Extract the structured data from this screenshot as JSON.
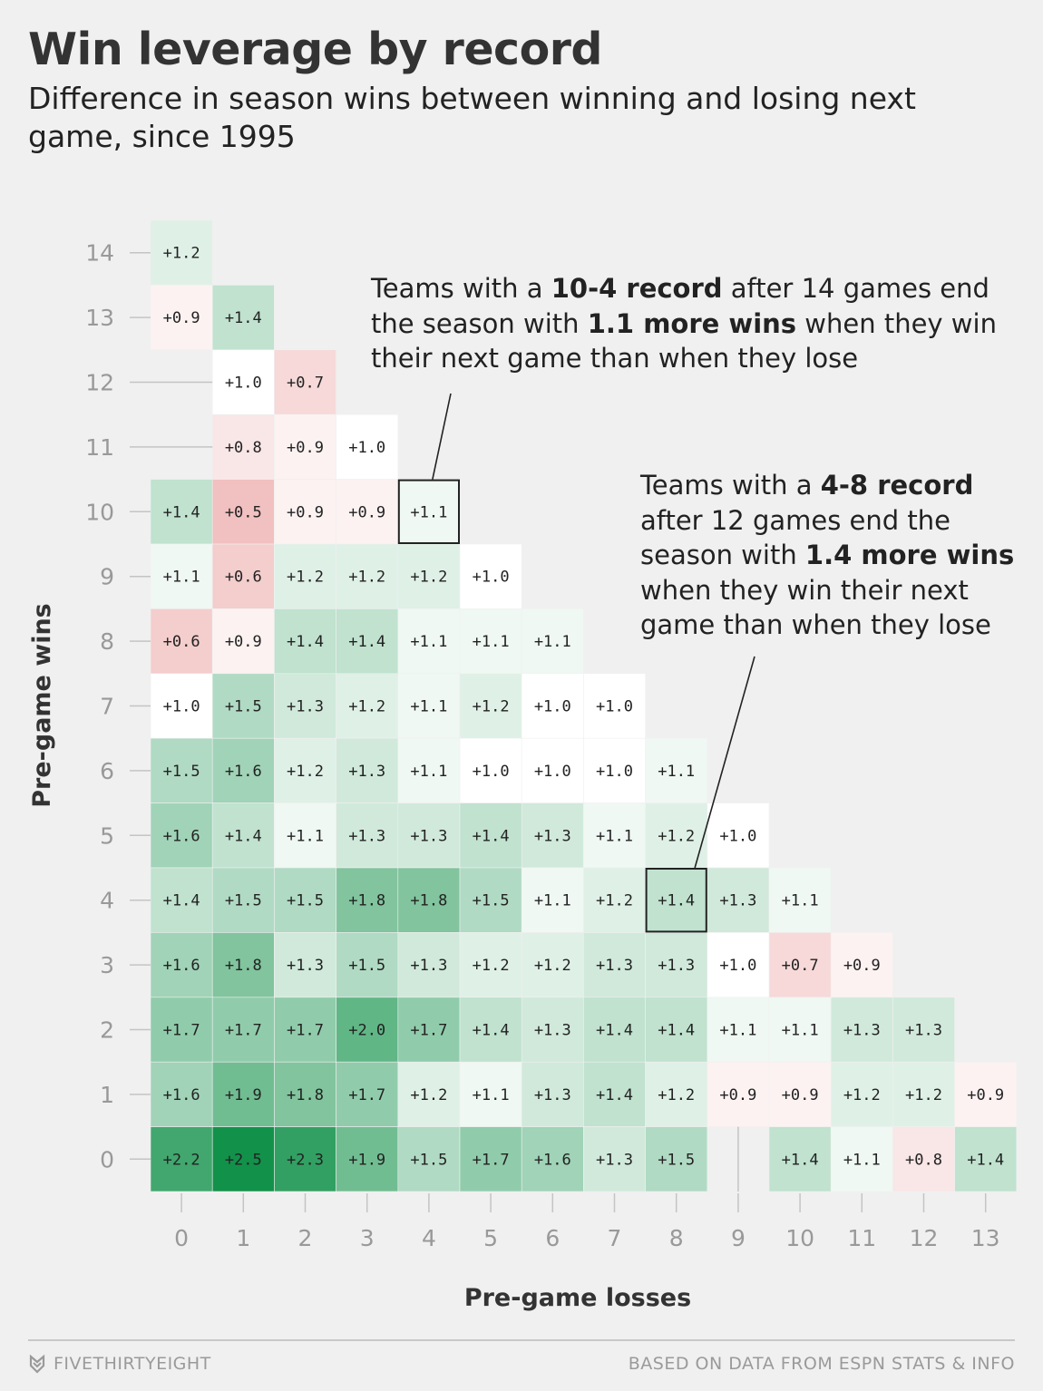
{
  "header": {
    "title": "Win leverage by record",
    "subtitle": "Difference in season wins between winning and losing next game, since 1995"
  },
  "annotations": [
    {
      "parts": [
        {
          "t": "Teams with a ",
          "b": false
        },
        {
          "t": "10-4 record",
          "b": true
        },
        {
          "t": " after 14 games end the season with ",
          "b": false
        },
        {
          "t": "1.1 more wins",
          "b": true
        },
        {
          "t": " when they win their next game than when they lose",
          "b": false
        }
      ],
      "highlight": {
        "wins": 10,
        "losses": 4
      }
    },
    {
      "parts": [
        {
          "t": "Teams with a ",
          "b": false
        },
        {
          "t": "4-8 record",
          "b": true
        },
        {
          "t": " after 12 games end the season with ",
          "b": false
        },
        {
          "t": "1.4 more wins",
          "b": true
        },
        {
          "t": " when they win their next game than when they lose",
          "b": false
        }
      ],
      "highlight": {
        "wins": 4,
        "losses": 8
      }
    }
  ],
  "chart_data": {
    "type": "heatmap",
    "xlabel": "Pre-game losses",
    "ylabel": "Pre-game wins",
    "x_ticks": [
      0,
      1,
      2,
      3,
      4,
      5,
      6,
      7,
      8,
      9,
      10,
      11,
      12,
      13
    ],
    "y_ticks": [
      0,
      1,
      2,
      3,
      4,
      5,
      6,
      7,
      8,
      9,
      10,
      11,
      12,
      13,
      14
    ],
    "colors": {
      "low": "#f1c0c0",
      "neutral": "#ffffff",
      "high": "#12914a",
      "neutral_value": 1.0
    },
    "rows": [
      {
        "wins": 14,
        "values": [
          1.2
        ]
      },
      {
        "wins": 13,
        "values": [
          0.9,
          1.4
        ]
      },
      {
        "wins": 12,
        "values": [
          null,
          1.0,
          0.7
        ]
      },
      {
        "wins": 11,
        "values": [
          null,
          0.8,
          0.9,
          1.0
        ]
      },
      {
        "wins": 10,
        "values": [
          1.4,
          0.5,
          0.9,
          0.9,
          1.1
        ]
      },
      {
        "wins": 9,
        "values": [
          1.1,
          0.6,
          1.2,
          1.2,
          1.2,
          1.0
        ]
      },
      {
        "wins": 8,
        "values": [
          0.6,
          0.9,
          1.4,
          1.4,
          1.1,
          1.1,
          1.1
        ]
      },
      {
        "wins": 7,
        "values": [
          1.0,
          1.5,
          1.3,
          1.2,
          1.1,
          1.2,
          1.0,
          1.0
        ]
      },
      {
        "wins": 6,
        "values": [
          1.5,
          1.6,
          1.2,
          1.3,
          1.1,
          1.0,
          1.0,
          1.0,
          1.1
        ]
      },
      {
        "wins": 5,
        "values": [
          1.6,
          1.4,
          1.1,
          1.3,
          1.3,
          1.4,
          1.3,
          1.1,
          1.2,
          1.0
        ]
      },
      {
        "wins": 4,
        "values": [
          1.4,
          1.5,
          1.5,
          1.8,
          1.8,
          1.5,
          1.1,
          1.2,
          1.4,
          1.3,
          1.1
        ]
      },
      {
        "wins": 3,
        "values": [
          1.6,
          1.8,
          1.3,
          1.5,
          1.3,
          1.2,
          1.2,
          1.3,
          1.3,
          1.0,
          0.7,
          0.9
        ]
      },
      {
        "wins": 2,
        "values": [
          1.7,
          1.7,
          1.7,
          2.0,
          1.7,
          1.4,
          1.3,
          1.4,
          1.4,
          1.1,
          1.1,
          1.3,
          1.3
        ]
      },
      {
        "wins": 1,
        "values": [
          1.6,
          1.9,
          1.8,
          1.7,
          1.2,
          1.1,
          1.3,
          1.4,
          1.2,
          0.9,
          0.9,
          1.2,
          1.2,
          0.9
        ]
      },
      {
        "wins": 0,
        "values": [
          2.2,
          2.5,
          2.3,
          1.9,
          1.5,
          1.7,
          1.6,
          1.3,
          1.5,
          null,
          1.4,
          1.1,
          0.8,
          1.4
        ]
      }
    ]
  },
  "footer": {
    "brand": "FIVETHIRTYEIGHT",
    "source": "BASED ON DATA FROM ESPN STATS & INFO"
  }
}
